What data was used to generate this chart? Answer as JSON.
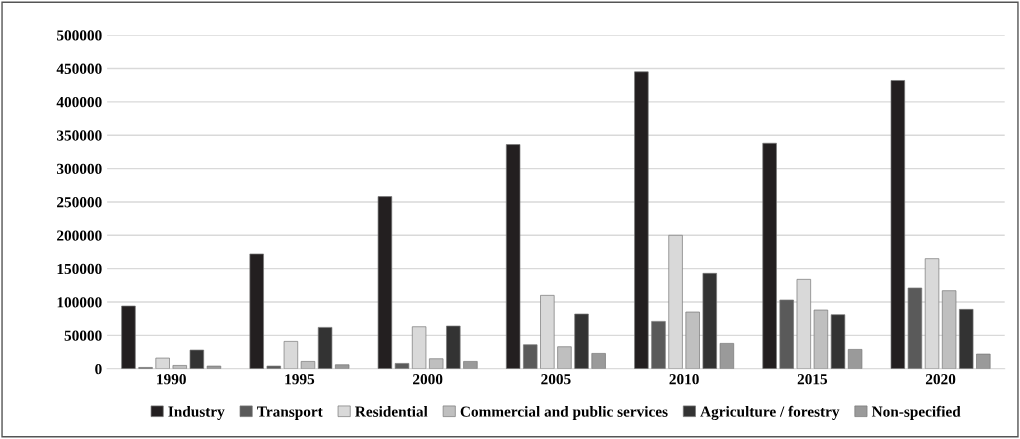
{
  "chart_data": {
    "type": "bar",
    "categories": [
      "1990",
      "1995",
      "2000",
      "2005",
      "2010",
      "2015",
      "2020"
    ],
    "series": [
      {
        "name": "Industry",
        "color": "#231f20",
        "values": [
          94000,
          172000,
          258000,
          336000,
          445000,
          338000,
          432000
        ]
      },
      {
        "name": "Transport",
        "color": "#5a5a5a",
        "values": [
          2000,
          4000,
          8000,
          36000,
          71000,
          103000,
          121000
        ]
      },
      {
        "name": "Residential",
        "color": "#d9d9d9",
        "values": [
          16000,
          41000,
          63000,
          110000,
          200000,
          134000,
          165000
        ]
      },
      {
        "name": "Commercial and public services",
        "color": "#bfbfbf",
        "values": [
          5000,
          11000,
          15000,
          33000,
          85000,
          88000,
          117000
        ]
      },
      {
        "name": "Agriculture / forestry",
        "color": "#333333",
        "values": [
          28000,
          62000,
          64000,
          82000,
          143000,
          81000,
          89000
        ]
      },
      {
        "name": "Non-specified",
        "color": "#9a9a9a",
        "values": [
          4000,
          6000,
          11000,
          23000,
          38000,
          29000,
          22000
        ]
      }
    ],
    "ylim": [
      0,
      500000
    ],
    "yticks": [
      0,
      50000,
      100000,
      150000,
      200000,
      250000,
      300000,
      350000,
      400000,
      450000,
      500000
    ],
    "grid": "y",
    "legend": "bottom"
  }
}
